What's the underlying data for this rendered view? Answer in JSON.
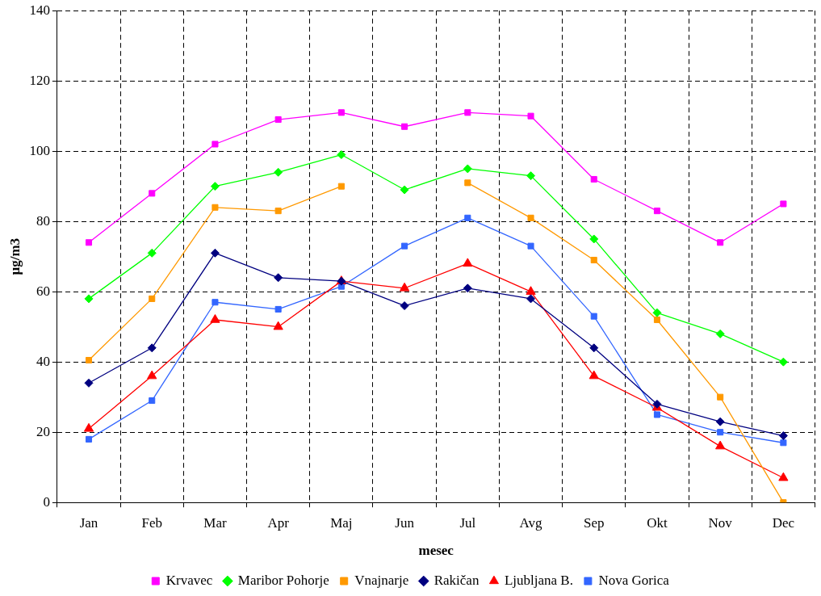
{
  "chart_data": {
    "type": "line",
    "xlabel": "mesec",
    "ylabel": "μg/m3",
    "categories": [
      "Jan",
      "Feb",
      "Mar",
      "Apr",
      "Maj",
      "Jun",
      "Jul",
      "Avg",
      "Sep",
      "Okt",
      "Nov",
      "Dec"
    ],
    "ylim": [
      0,
      140
    ],
    "yticks": [
      0,
      20,
      40,
      60,
      80,
      100,
      120,
      140
    ],
    "grid": true,
    "line_style": "solid",
    "legend": "bottom",
    "series": [
      {
        "name": "Krvavec",
        "color": "#ff00ff",
        "marker": "square",
        "values": [
          74,
          88,
          102,
          109,
          111,
          107,
          111,
          110,
          92,
          83,
          74,
          85
        ]
      },
      {
        "name": "Maribor Pohorje",
        "color": "#00ff00",
        "marker": "diamond",
        "values": [
          58,
          71,
          90,
          94,
          99,
          89,
          95,
          93,
          75,
          54,
          48,
          40
        ]
      },
      {
        "name": "Vnajnarje",
        "color": "#ff9900",
        "marker": "square",
        "values": [
          40.5,
          58,
          84,
          83,
          90,
          null,
          91,
          81,
          69,
          52,
          30,
          0
        ]
      },
      {
        "name": "Rakičan",
        "color": "#000080",
        "marker": "diamond",
        "values": [
          34,
          44,
          71,
          64,
          63,
          56,
          61,
          58,
          44,
          28,
          23,
          19
        ]
      },
      {
        "name": "Ljubljana B.",
        "color": "#ff0000",
        "marker": "triangle",
        "values": [
          21,
          36,
          52,
          50,
          63,
          61,
          68,
          60,
          36,
          27,
          16,
          7
        ]
      },
      {
        "name": "Nova Gorica",
        "color": "#3366ff",
        "marker": "square",
        "values": [
          18,
          29,
          57,
          55,
          61.5,
          73,
          81,
          73,
          53,
          25,
          20,
          17
        ]
      }
    ]
  }
}
